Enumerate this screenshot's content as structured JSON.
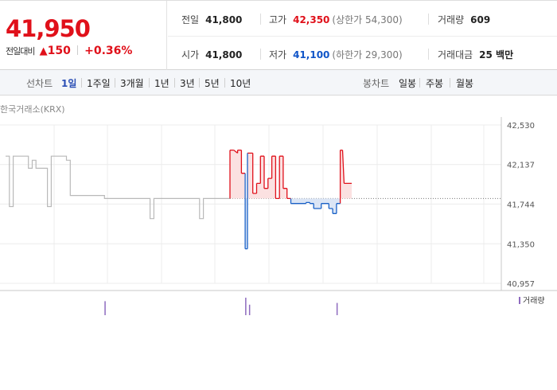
{
  "summary": {
    "price": "41,950",
    "change_label": "전일대비",
    "change_arrow": "▲",
    "change_amount": "150",
    "change_percent": "+0.36%"
  },
  "stats": {
    "prev_close": {
      "label": "전일",
      "value": "41,800"
    },
    "high": {
      "label": "고가",
      "value": "42,350",
      "sub": "(상한가 54,300)"
    },
    "volume": {
      "label": "거래량",
      "value": "609"
    },
    "open": {
      "label": "시가",
      "value": "41,800"
    },
    "low": {
      "label": "저가",
      "value": "41,100",
      "sub": "(하한가 29,300)"
    },
    "trade_value": {
      "label": "거래대금",
      "value": "25 백만"
    }
  },
  "line_chart_tabs": {
    "label": "선차트",
    "items": [
      "1일",
      "1주일",
      "3개월",
      "1년",
      "3년",
      "5년",
      "10년"
    ],
    "selected": "1일"
  },
  "candle_chart_tabs": {
    "label": "봉차트",
    "items": [
      "일봉",
      "주봉",
      "월봉"
    ]
  },
  "chart_data": {
    "type": "line",
    "source_label": "한국거래소(KRX)",
    "y_ticks": [
      "42,530",
      "42,137",
      "41,744",
      "41,350",
      "40,957"
    ],
    "ylim": [
      40957,
      42530
    ],
    "baseline": 41800,
    "grid": true,
    "legend": "거래량",
    "colors": {
      "prev_period": "#b9b9b9",
      "up": "#e0101a",
      "down": "#1a62c8",
      "up_fill": "#fbe1e1",
      "down_fill": "#dbe5f5",
      "volume": "#8e6bbf"
    },
    "prev_period_series": [
      [
        0,
        42220
      ],
      [
        1,
        42220
      ],
      [
        1,
        41720
      ],
      [
        2,
        41720
      ],
      [
        2,
        42220
      ],
      [
        6,
        42220
      ],
      [
        6,
        42100
      ],
      [
        7,
        42100
      ],
      [
        7,
        42180
      ],
      [
        8,
        42180
      ],
      [
        8,
        42100
      ],
      [
        11,
        42100
      ],
      [
        11,
        41720
      ],
      [
        12,
        41720
      ],
      [
        12,
        42220
      ],
      [
        16,
        42220
      ],
      [
        16,
        42180
      ],
      [
        17,
        42180
      ],
      [
        17,
        41830
      ],
      [
        26,
        41830
      ],
      [
        26,
        41800
      ],
      [
        38,
        41800
      ],
      [
        38,
        41600
      ],
      [
        39,
        41600
      ],
      [
        39,
        41800
      ],
      [
        51,
        41800
      ],
      [
        51,
        41600
      ],
      [
        52,
        41600
      ],
      [
        52,
        41800
      ],
      [
        59,
        41800
      ]
    ],
    "today_series": [
      [
        59,
        41800
      ],
      [
        59,
        42280
      ],
      [
        60,
        42280
      ],
      [
        61,
        42250
      ],
      [
        61,
        42280
      ],
      [
        62,
        42280
      ],
      [
        62,
        42050
      ],
      [
        63,
        42050
      ],
      [
        63,
        41300
      ],
      [
        63.6,
        41300
      ],
      [
        63.6,
        42250
      ],
      [
        65,
        42250
      ],
      [
        65,
        41850
      ],
      [
        66,
        41850
      ],
      [
        66,
        41950
      ],
      [
        67,
        41950
      ],
      [
        67,
        42220
      ],
      [
        68,
        42220
      ],
      [
        68,
        41900
      ],
      [
        69,
        41900
      ],
      [
        69,
        42000
      ],
      [
        70,
        42000
      ],
      [
        70,
        42220
      ],
      [
        71,
        42220
      ],
      [
        71,
        41800
      ],
      [
        72,
        41800
      ],
      [
        72,
        42220
      ],
      [
        73,
        42220
      ],
      [
        73,
        41900
      ],
      [
        74,
        41900
      ],
      [
        74,
        41800
      ],
      [
        75,
        41800
      ],
      [
        75,
        41750
      ],
      [
        79,
        41750
      ],
      [
        79,
        41760
      ],
      [
        80,
        41760
      ],
      [
        80,
        41750
      ],
      [
        81,
        41750
      ],
      [
        81,
        41700
      ],
      [
        83,
        41700
      ],
      [
        83,
        41750
      ],
      [
        85,
        41750
      ],
      [
        85,
        41700
      ],
      [
        86,
        41700
      ],
      [
        86,
        41650
      ],
      [
        87,
        41650
      ],
      [
        87,
        41750
      ],
      [
        88,
        41750
      ],
      [
        88,
        42280
      ],
      [
        88.6,
        42280
      ],
      [
        89,
        41950
      ],
      [
        91,
        41950
      ]
    ],
    "volume_bars": [
      [
        26,
        0.8
      ],
      [
        63,
        1.0
      ],
      [
        64,
        0.6
      ],
      [
        87,
        0.7
      ]
    ],
    "x_max": 120
  }
}
